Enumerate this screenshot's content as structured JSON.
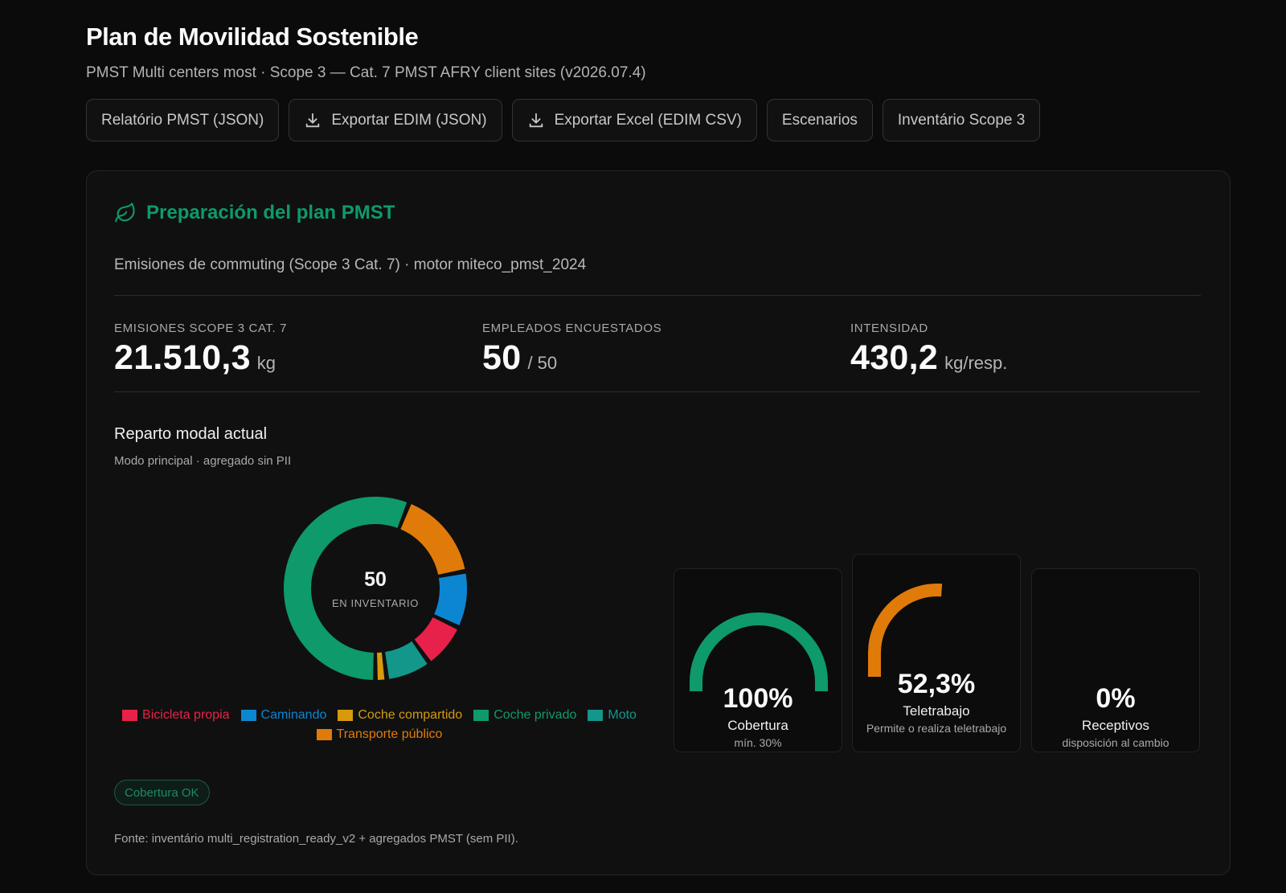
{
  "header": {
    "title": "Plan de Movilidad Sostenible",
    "subtitle": "PMST Multi centers most · Scope 3 — Cat. 7 PMST AFRY client sites (v2026.07.4)"
  },
  "toolbar": {
    "buttons": [
      {
        "label": "Relatório PMST (JSON)",
        "icon": "none"
      },
      {
        "label": "Exportar EDIM (JSON)",
        "icon": "download-icon"
      },
      {
        "label": "Exportar Excel (EDIM CSV)",
        "icon": "download-icon"
      },
      {
        "label": "Escenarios",
        "icon": "none"
      },
      {
        "label": "Inventário Scope 3",
        "icon": "none"
      }
    ]
  },
  "card": {
    "title": "Preparación del plan PMST",
    "title_icon": "leaf-icon",
    "title_color": "#0e9a6a",
    "description": "Emisiones de commuting (Scope 3 Cat. 7) · motor miteco_pmst_2024",
    "kpis": [
      {
        "label": "Emisiones Scope 3 Cat. 7",
        "value": "21.510,3",
        "unit": "kg"
      },
      {
        "label": "Empleados encuestados",
        "value": "50",
        "unit": "/ 50"
      },
      {
        "label": "Intensidad",
        "value": "430,2",
        "unit": "kg/resp."
      }
    ],
    "modal_split": {
      "title": "Reparto modal actual",
      "subtitle": "Modo principal · agregado sin PII",
      "center_value": "50",
      "center_label": "EN INVENTARIO"
    },
    "gauges": [
      {
        "value_text": "100%",
        "fraction": 1.0,
        "label": "Cobertura",
        "sub": "mín. 30%",
        "color": "#0e9a6a"
      },
      {
        "value_text": "52,3%",
        "fraction": 0.523,
        "label": "Teletrabajo",
        "sub": "Permite o realiza teletrabajo",
        "color": "#e07b0a"
      },
      {
        "value_text": "0%",
        "fraction": 0.0,
        "label": "Receptivos",
        "sub": "disposición al cambio",
        "color": "#0e9a6a"
      }
    ],
    "badge": "Cobertura OK",
    "footer": "Fonte: inventário multi_registration_ready_v2 + agregados PMST (sem PII)."
  },
  "chart_data": {
    "type": "pie",
    "total": 50,
    "categories": [
      "Bicicleta propia",
      "Caminando",
      "Coche compartido",
      "Coche privado",
      "Moto",
      "Transporte público"
    ],
    "colors": [
      "#e8214a",
      "#0c86d1",
      "#d69a0c",
      "#0e9a6a",
      "#12978a",
      "#e07b0a"
    ],
    "values": [
      4,
      5,
      1,
      28,
      4,
      8
    ],
    "draw_order": [
      "Coche compartido",
      "Moto",
      "Bicicleta propia",
      "Caminando",
      "Transporte público",
      "Coche privado"
    ]
  }
}
